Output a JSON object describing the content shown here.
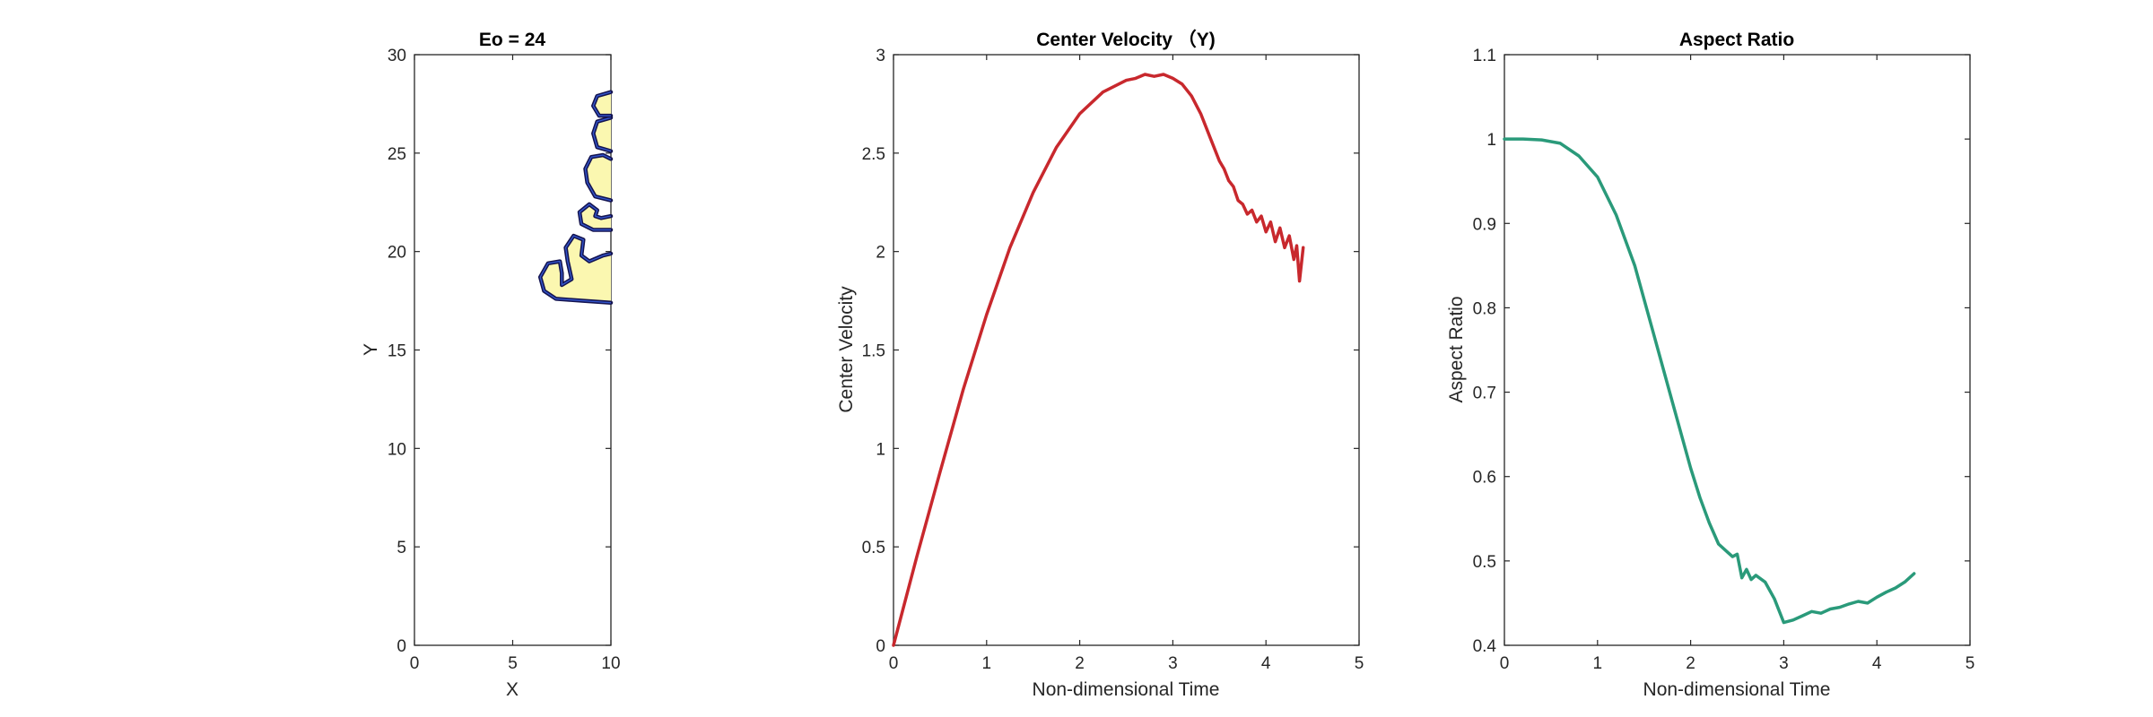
{
  "chart_data": [
    {
      "type": "contour",
      "title": "Eo = 24",
      "xlabel": "X",
      "ylabel": "Y",
      "xlim": [
        0,
        10
      ],
      "ylim": [
        0,
        30
      ],
      "xticks": [
        0,
        5,
        10
      ],
      "yticks": [
        0,
        5,
        10,
        15,
        20,
        25,
        30
      ],
      "grid": false,
      "colors": {
        "outline": "#141450",
        "fill": "#fbf7b0",
        "inner": "#3355cc"
      },
      "shapes": [
        {
          "name": "lower-lobe",
          "points": [
            [
              10,
              17.4
            ],
            [
              8.6,
              17.5
            ],
            [
              7.2,
              17.6
            ],
            [
              6.6,
              18
            ],
            [
              6.4,
              18.7
            ],
            [
              6.8,
              19.4
            ],
            [
              7.4,
              19.5
            ],
            [
              7.5,
              18.9
            ],
            [
              7.5,
              18.3
            ],
            [
              8,
              18.6
            ],
            [
              7.8,
              19.5
            ],
            [
              7.7,
              20.2
            ],
            [
              8.1,
              20.8
            ],
            [
              8.6,
              20.6
            ],
            [
              8.5,
              19.8
            ],
            [
              8.9,
              19.5
            ],
            [
              9.6,
              19.8
            ],
            [
              10,
              19.9
            ]
          ]
        },
        {
          "name": "middle-lobe",
          "points": [
            [
              10,
              21.1
            ],
            [
              9.1,
              21.1
            ],
            [
              8.5,
              21.4
            ],
            [
              8.4,
              22
            ],
            [
              8.9,
              22.4
            ],
            [
              9.3,
              22.1
            ],
            [
              9.2,
              21.8
            ],
            [
              9.5,
              21.7
            ],
            [
              10,
              21.8
            ]
          ]
        },
        {
          "name": "upper-lobe-1",
          "points": [
            [
              10,
              22.6
            ],
            [
              9.2,
              22.8
            ],
            [
              8.8,
              23.5
            ],
            [
              8.7,
              24.2
            ],
            [
              9.0,
              24.8
            ],
            [
              9.6,
              24.9
            ],
            [
              10,
              24.7
            ]
          ]
        },
        {
          "name": "upper-lobe-2",
          "points": [
            [
              10,
              25.1
            ],
            [
              9.3,
              25.3
            ],
            [
              9.1,
              26.0
            ],
            [
              9.3,
              26.6
            ],
            [
              10,
              26.8
            ]
          ]
        },
        {
          "name": "top-lobe",
          "points": [
            [
              10,
              26.9
            ],
            [
              9.4,
              26.9
            ],
            [
              9.1,
              27.4
            ],
            [
              9.3,
              27.9
            ],
            [
              10,
              28.1
            ]
          ]
        }
      ]
    },
    {
      "type": "line",
      "title": "Center Velocity （Y)",
      "xlabel": "Non-dimensional Time",
      "ylabel": "Center Velocity",
      "xlim": [
        0,
        5
      ],
      "ylim": [
        0,
        3
      ],
      "xticks": [
        0,
        1,
        2,
        3,
        4,
        5
      ],
      "yticks": [
        0,
        0.5,
        1,
        1.5,
        2,
        2.5,
        3
      ],
      "grid": false,
      "series": [
        {
          "color": "#c8282d",
          "x": [
            0,
            0.25,
            0.5,
            0.75,
            1.0,
            1.25,
            1.5,
            1.75,
            2.0,
            2.25,
            2.5,
            2.6,
            2.7,
            2.8,
            2.9,
            3.0,
            3.1,
            3.2,
            3.3,
            3.4,
            3.5,
            3.55,
            3.6,
            3.65,
            3.7,
            3.75,
            3.8,
            3.85,
            3.9,
            3.95,
            4.0,
            4.05,
            4.1,
            4.15,
            4.2,
            4.25,
            4.3,
            4.33,
            4.36,
            4.4
          ],
          "y": [
            0,
            0.45,
            0.88,
            1.3,
            1.68,
            2.02,
            2.3,
            2.53,
            2.7,
            2.81,
            2.87,
            2.88,
            2.9,
            2.89,
            2.9,
            2.88,
            2.85,
            2.79,
            2.7,
            2.58,
            2.46,
            2.42,
            2.36,
            2.33,
            2.26,
            2.24,
            2.19,
            2.21,
            2.15,
            2.18,
            2.1,
            2.15,
            2.05,
            2.12,
            2.02,
            2.08,
            1.96,
            2.03,
            1.85,
            2.02
          ]
        }
      ]
    },
    {
      "type": "line",
      "title": "Aspect Ratio",
      "xlabel": "Non-dimensional Time",
      "ylabel": "Aspect Ratio",
      "xlim": [
        0,
        5
      ],
      "ylim": [
        0.4,
        1.1
      ],
      "xticks": [
        0,
        1,
        2,
        3,
        4,
        5
      ],
      "yticks": [
        0.4,
        0.5,
        0.6,
        0.7,
        0.8,
        0.9,
        1,
        1.1
      ],
      "grid": false,
      "series": [
        {
          "color": "#2a9a7a",
          "x": [
            0,
            0.2,
            0.4,
            0.6,
            0.8,
            1.0,
            1.2,
            1.4,
            1.6,
            1.8,
            2.0,
            2.1,
            2.2,
            2.3,
            2.4,
            2.45,
            2.5,
            2.55,
            2.6,
            2.65,
            2.7,
            2.8,
            2.9,
            3.0,
            3.1,
            3.2,
            3.3,
            3.4,
            3.5,
            3.6,
            3.7,
            3.8,
            3.9,
            4.0,
            4.1,
            4.2,
            4.3,
            4.4
          ],
          "y": [
            1.0,
            1.0,
            0.999,
            0.995,
            0.98,
            0.955,
            0.91,
            0.85,
            0.77,
            0.69,
            0.61,
            0.575,
            0.545,
            0.52,
            0.51,
            0.505,
            0.508,
            0.48,
            0.49,
            0.478,
            0.483,
            0.475,
            0.455,
            0.427,
            0.43,
            0.435,
            0.44,
            0.438,
            0.443,
            0.445,
            0.449,
            0.452,
            0.45,
            0.457,
            0.463,
            0.468,
            0.475,
            0.485
          ]
        }
      ]
    }
  ]
}
